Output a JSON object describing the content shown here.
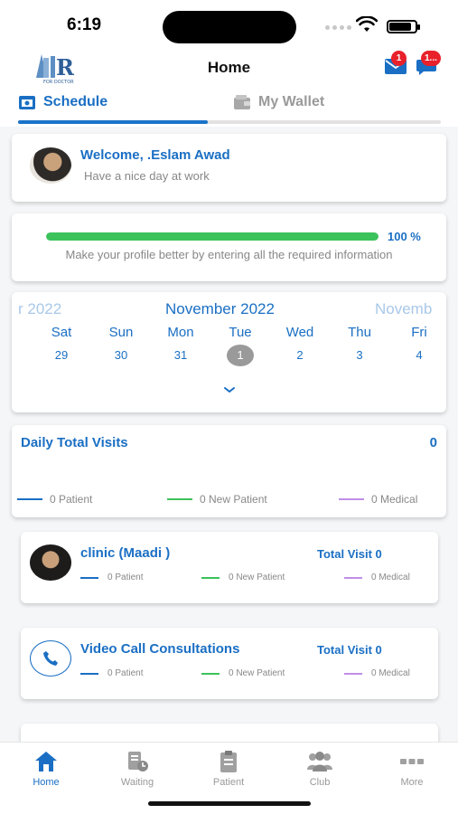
{
  "status": {
    "time": "6:19",
    "battery_level": 0.88
  },
  "header": {
    "logo_text": "R",
    "logo_subtext": "FOR DOCTOR",
    "title": "Home",
    "messages_badge": "1",
    "notifications_badge": "1..."
  },
  "tabs": [
    {
      "label": "Schedule",
      "active": true
    },
    {
      "label": "My Wallet",
      "active": false
    }
  ],
  "welcome": {
    "greeting": "Welcome, .Eslam Awad",
    "subtitle": "Have a nice day at work"
  },
  "profile": {
    "progress": 1.0,
    "percent_label": "100 %",
    "message": "Make your profile better by entering all the required information"
  },
  "calendar": {
    "prev_month": "r 2022",
    "current_month": "November 2022",
    "next_month": "Novemb",
    "days": [
      {
        "name": "Sat",
        "date": "29",
        "selected": false
      },
      {
        "name": "Sun",
        "date": "30",
        "selected": false
      },
      {
        "name": "Mon",
        "date": "31",
        "selected": false
      },
      {
        "name": "Tue",
        "date": "1",
        "selected": true
      },
      {
        "name": "Wed",
        "date": "2",
        "selected": false
      },
      {
        "name": "Thu",
        "date": "3",
        "selected": false
      },
      {
        "name": "Fri",
        "date": "4",
        "selected": false
      }
    ]
  },
  "daily": {
    "title": "Daily Total Visits",
    "total": "0",
    "legend": [
      {
        "label": "0 Patient",
        "color": "#1a6fc4"
      },
      {
        "label": "0 New Patient",
        "color": "#3cc25b"
      },
      {
        "label": "0 Medical",
        "color": "#c08ee8"
      }
    ]
  },
  "clinics": [
    {
      "name": "clinic (Maadi )",
      "total": "Total Visit 0",
      "icon": "doctor-avatar",
      "legend": [
        "0 Patient",
        "0 New Patient",
        "0 Medical"
      ]
    },
    {
      "name": "Video  Call Consultations",
      "total": "Total Visit 0",
      "icon": "phone-icon",
      "legend": [
        "0 Patient",
        "0 New Patient",
        "0 Medical"
      ]
    }
  ],
  "colors": {
    "primary": "#1a6fc4",
    "green": "#3cc25b",
    "purple": "#c08ee8",
    "badge": "#e8212b"
  },
  "nav": [
    {
      "label": "Home",
      "icon": "home-icon",
      "active": true
    },
    {
      "label": "Waiting",
      "icon": "waiting-icon",
      "active": false
    },
    {
      "label": "Patient",
      "icon": "clipboard-icon",
      "active": false
    },
    {
      "label": "Club",
      "icon": "group-icon",
      "active": false
    },
    {
      "label": "More",
      "icon": "more-icon",
      "active": false
    }
  ]
}
